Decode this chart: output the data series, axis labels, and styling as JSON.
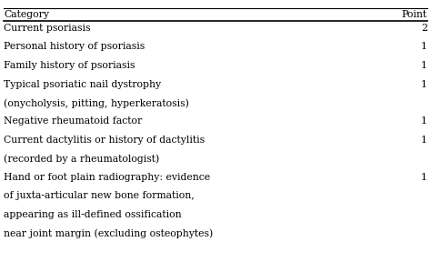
{
  "title_row": [
    "Category",
    "Point"
  ],
  "rows": [
    [
      "Current psoriasis",
      "2"
    ],
    [
      "Personal history of psoriasis",
      "1"
    ],
    [
      "Family history of psoriasis",
      "1"
    ],
    [
      "Typical psoriatic nail dystrophy",
      "1"
    ],
    [
      "(onycholysis, pitting, hyperkeratosis)",
      ""
    ],
    [
      "Negative rheumatoid factor",
      "1"
    ],
    [
      "Current dactylitis or history of dactylitis",
      "1"
    ],
    [
      "(recorded by a rheumatologist)",
      ""
    ],
    [
      "Hand or foot plain radiography: evidence",
      "1"
    ],
    [
      "of juxta-articular new bone formation,",
      ""
    ],
    [
      "appearing as ill-defined ossification",
      ""
    ],
    [
      "near joint margin (excluding osteophytes)",
      ""
    ]
  ],
  "bg_color": "#ffffff",
  "text_color": "#000000",
  "line_color": "#000000",
  "font_size": 7.8,
  "header_font_size": 7.8
}
